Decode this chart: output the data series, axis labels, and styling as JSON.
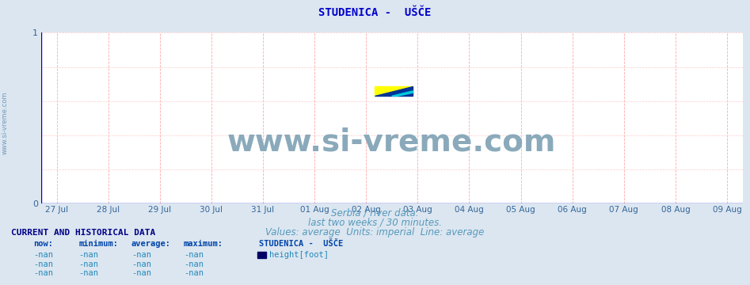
{
  "title": "STUDENICA -  UŠČE",
  "title_color": "#0000cc",
  "title_fontsize": 10,
  "bg_color": "#dce6f0",
  "plot_bg_color": "#ffffff",
  "watermark_text": "www.si-vreme.com",
  "watermark_color": "#8aaabb",
  "watermark_fontsize": 28,
  "sidebar_text": "www.si-vreme.com",
  "sidebar_color": "#5588aa",
  "sidebar_fontsize": 6,
  "ylim": [
    0,
    1
  ],
  "yticks": [
    0,
    1
  ],
  "tick_label_color": "#336699",
  "grid_color_major": "#ffaaaa",
  "grid_color_minor": "#ffcccc",
  "axis_color": "#cc2222",
  "spine_color": "#0000cc",
  "x_labels": [
    "27 Jul",
    "28 Jul",
    "29 Jul",
    "30 Jul",
    "31 Jul",
    "01 Aug",
    "02 Aug",
    "03 Aug",
    "04 Aug",
    "05 Aug",
    "06 Aug",
    "07 Aug",
    "08 Aug",
    "09 Aug"
  ],
  "x_positions": [
    0,
    1,
    2,
    3,
    4,
    5,
    6,
    7,
    8,
    9,
    10,
    11,
    12,
    13
  ],
  "subtitle1": "Serbia / river data.",
  "subtitle2": "last two weeks / 30 minutes.",
  "subtitle3": "Values: average  Units: imperial  Line: average",
  "subtitle_color": "#5599bb",
  "subtitle_fontsize": 8.5,
  "footer_title": "CURRENT AND HISTORICAL DATA",
  "footer_title_color": "#000088",
  "footer_col_headers": [
    "now:",
    "minimum:",
    "average:",
    "maximum:",
    "STUDENICA -  UŠČE"
  ],
  "footer_col_color": "#0044aa",
  "footer_rows": [
    [
      "-nan",
      "-nan",
      "-nan",
      "-nan",
      "height[foot]"
    ],
    [
      "-nan",
      "-nan",
      "-nan",
      "-nan",
      ""
    ],
    [
      "-nan",
      "-nan",
      "-nan",
      "-nan",
      ""
    ]
  ],
  "footer_row_color": "#2288bb",
  "legend_box_color": "#000066",
  "logo_yellow": "#ffff00",
  "logo_cyan": "#00ccdd",
  "logo_blue": "#003399"
}
